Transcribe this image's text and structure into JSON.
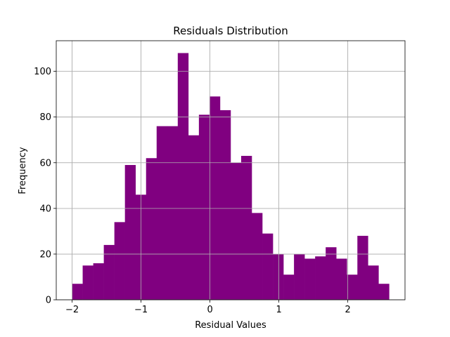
{
  "chart_data": {
    "type": "bar",
    "subtype": "histogram",
    "title": "Residuals Distribution",
    "xlabel": "Residual Values",
    "ylabel": "Frequency",
    "bar_color": "#800080",
    "grid": true,
    "xlim": [
      -2.23,
      2.83
    ],
    "ylim": [
      0,
      113.4
    ],
    "xticks": [
      -2,
      -1,
      0,
      1,
      2
    ],
    "xtick_labels": [
      "−2",
      "−1",
      "0",
      "1",
      "2"
    ],
    "yticks": [
      0,
      20,
      40,
      60,
      80,
      100
    ],
    "ytick_labels": [
      "0",
      "20",
      "40",
      "60",
      "80",
      "100"
    ],
    "bin_start": -2.0,
    "bin_width": 0.1533,
    "values": [
      7,
      15,
      16,
      24,
      34,
      59,
      46,
      62,
      76,
      76,
      108,
      72,
      81,
      89,
      83,
      60,
      63,
      38,
      29,
      20,
      11,
      20,
      18,
      19,
      23,
      18,
      11,
      28,
      15,
      7
    ]
  }
}
